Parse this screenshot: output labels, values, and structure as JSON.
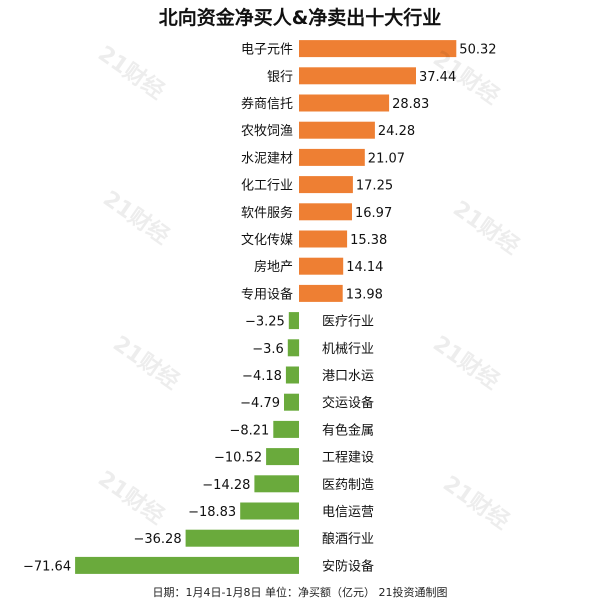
{
  "title": "北向资金净买人&净卖出十大行业",
  "footer": "日期：1月4日-1月8日 单位：净买额（亿元） 21投资通制图",
  "watermark": "21财经",
  "colors": {
    "positive": "#ee7f33",
    "negative": "#6aaa3c",
    "text": "#111111"
  },
  "chart_data": {
    "type": "bar",
    "orientation": "horizontal",
    "categories": [
      "电子元件",
      "银行",
      "券商信托",
      "农牧饲渔",
      "水泥建材",
      "化工行业",
      "软件服务",
      "文化传媒",
      "房地产",
      "专用设备",
      "医疗行业",
      "机械行业",
      "港口水运",
      "交运设备",
      "有色金属",
      "工程建设",
      "医药制造",
      "电信运营",
      "酿酒行业",
      "安防设备"
    ],
    "values": [
      50.32,
      37.44,
      28.83,
      24.28,
      21.07,
      17.25,
      16.97,
      15.38,
      14.14,
      13.98,
      -3.25,
      -3.6,
      -4.18,
      -4.79,
      -8.21,
      -10.52,
      -14.28,
      -18.83,
      -36.28,
      -71.64
    ],
    "value_labels": [
      "50.32",
      "37.44",
      "28.83",
      "24.28",
      "21.07",
      "17.25",
      "16.97",
      "15.38",
      "14.14",
      "13.98",
      "−3.25",
      "−3.6",
      "−4.18",
      "−4.79",
      "−8.21",
      "−10.52",
      "−14.28",
      "−18.83",
      "−36.28",
      "−71.64"
    ],
    "xlim": [
      -71.64,
      50.32
    ],
    "grid": false,
    "legend": "none"
  }
}
